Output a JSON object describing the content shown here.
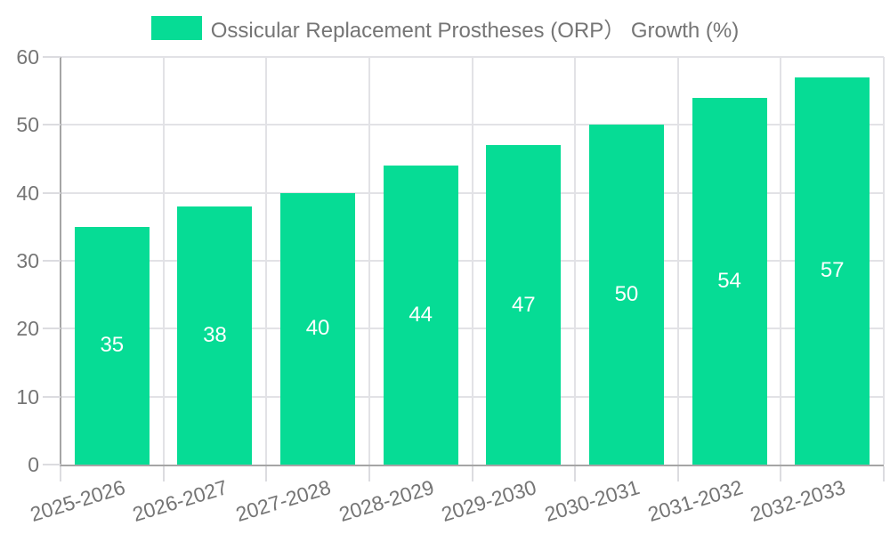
{
  "chart_data": {
    "type": "bar",
    "legend": "Ossicular Replacement Prostheses (ORP） Growth (%)",
    "series_name": "Ossicular Replacement Prostheses (ORP） Growth (%)",
    "categories": [
      "2025-2026",
      "2026-2027",
      "2027-2028",
      "2028-2029",
      "2029-2030",
      "2030-2031",
      "2031-2032",
      "2032-2033"
    ],
    "values": [
      35,
      38,
      40,
      44,
      47,
      50,
      54,
      57
    ],
    "value_labels": [
      "35",
      "38",
      "40",
      "44",
      "47",
      "50",
      "54",
      "57"
    ],
    "ylabel": "",
    "xlabel": "",
    "ylim": [
      0,
      60
    ],
    "yticks": [
      0,
      10,
      20,
      30,
      40,
      50,
      60
    ],
    "grid": "horizontal and vertical light grey gridlines",
    "legend_position": "top-center",
    "x_label_rotation_deg": -17,
    "colors": {
      "bar": "#06DC95",
      "axis": "#A5A5A5",
      "grid": "#E2E2E6",
      "tick": "#DCDCE0",
      "text": "#757575",
      "value_label": "#FFFFFF",
      "background": "#FFFFFF"
    }
  }
}
